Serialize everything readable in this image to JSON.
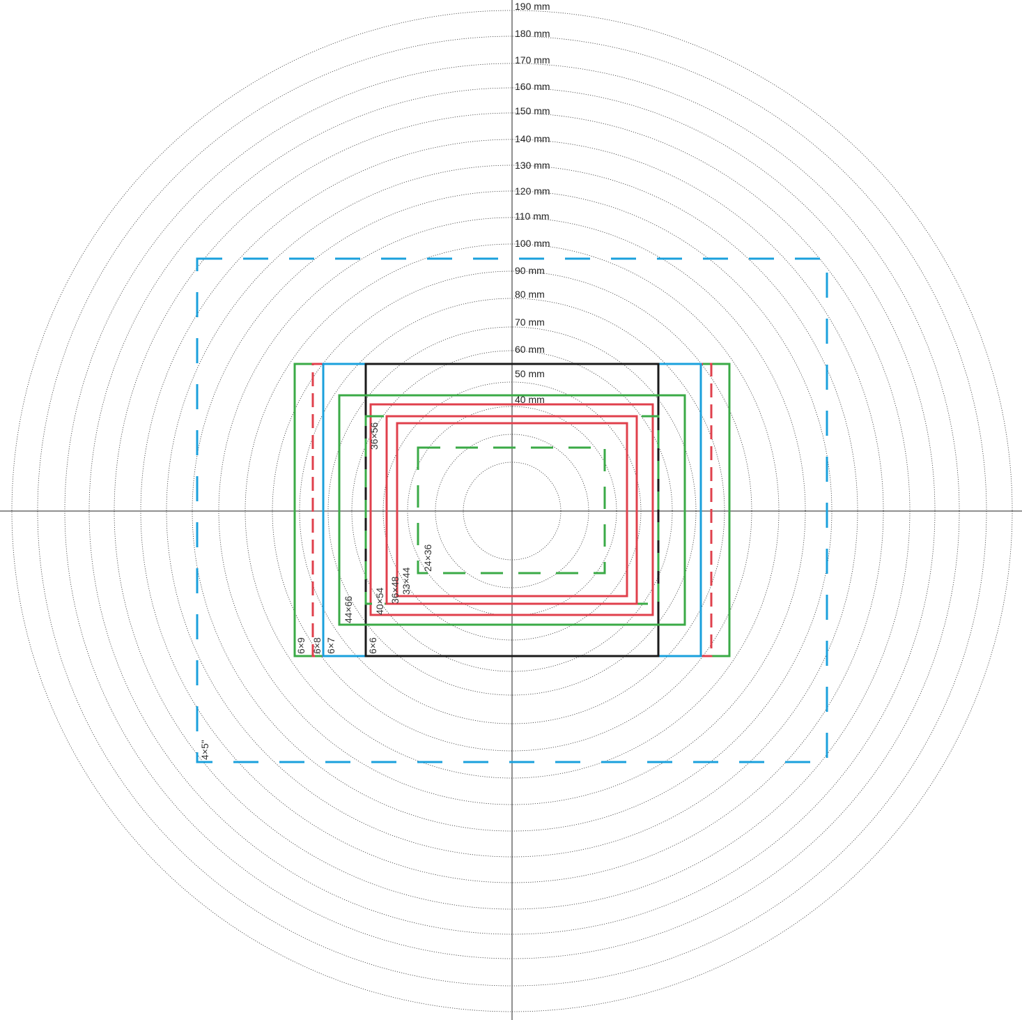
{
  "diagram": {
    "colors": {
      "background": "#ffffff",
      "axis": "#222222",
      "circle": "#333333",
      "black": "#1a1a1a",
      "red": "#e0404c",
      "green": "#3aaa46",
      "blue": "#1aa0dc"
    },
    "circle_labels": [
      "40 mm",
      "50 mm",
      "60 mm",
      "70 mm",
      "80 mm",
      "90 mm",
      "100 mm",
      "110 mm",
      "120 mm",
      "130 mm",
      "140 mm",
      "150 mm",
      "160 mm",
      "170 mm",
      "180 mm",
      "190 mm"
    ],
    "formats": [
      {
        "id": "24x36",
        "label": "24×36",
        "color": "green",
        "style": "dashed"
      },
      {
        "id": "33x44",
        "label": "33×44",
        "color": "red",
        "style": "solid"
      },
      {
        "id": "36x48",
        "label": "36×48",
        "color": "red",
        "style": "solid"
      },
      {
        "id": "36x56",
        "label": "36×56",
        "color": "green",
        "style": "dashed"
      },
      {
        "id": "40x54",
        "label": "40×54",
        "color": "red",
        "style": "solid"
      },
      {
        "id": "44x66",
        "label": "44×66",
        "color": "green",
        "style": "solid"
      },
      {
        "id": "6x6",
        "label": "6×6",
        "color": "black",
        "style": "solid"
      },
      {
        "id": "6x7",
        "label": "6×7",
        "color": "blue",
        "style": "solid"
      },
      {
        "id": "6x8",
        "label": "6×8",
        "color": "red",
        "style": "dashed"
      },
      {
        "id": "6x9",
        "label": "6×9",
        "color": "green",
        "style": "solid"
      },
      {
        "id": "4x5in",
        "label": "4×5\"",
        "color": "blue",
        "style": "dashed"
      }
    ]
  }
}
